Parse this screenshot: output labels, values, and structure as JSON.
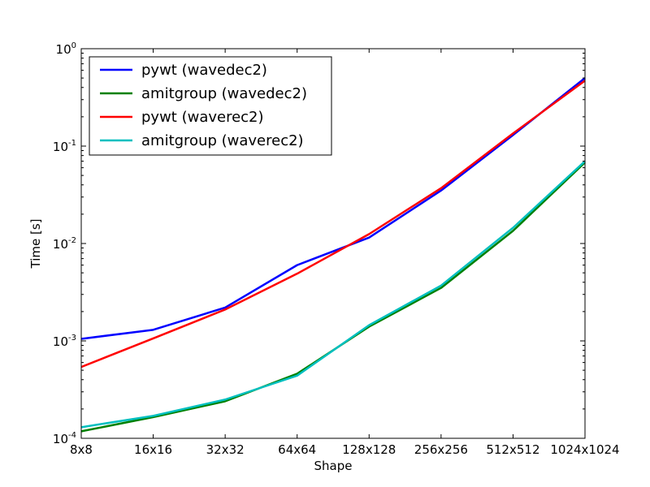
{
  "chart_data": {
    "type": "line",
    "title": "",
    "xlabel": "Shape",
    "ylabel": "Time [s]",
    "yscale": "log",
    "ylim": [
      0.0001,
      1
    ],
    "grid": false,
    "legend_position": "top-left",
    "categories": [
      "8x8",
      "16x16",
      "32x32",
      "64x64",
      "128x128",
      "256x256",
      "512x512",
      "1024x1024"
    ],
    "yticks": [
      {
        "base": "10",
        "exp": "-4",
        "value": 0.0001
      },
      {
        "base": "10",
        "exp": "-3",
        "value": 0.001
      },
      {
        "base": "10",
        "exp": "-2",
        "value": 0.01
      },
      {
        "base": "10",
        "exp": "-1",
        "value": 0.1
      },
      {
        "base": "10",
        "exp": "0",
        "value": 1
      }
    ],
    "series": [
      {
        "name": "pywt (wavedec2)",
        "color": "#0000ff",
        "values": [
          0.00105,
          0.0013,
          0.0022,
          0.006,
          0.0115,
          0.035,
          0.13,
          0.5
        ]
      },
      {
        "name": "amitgroup (wavedec2)",
        "color": "#008000",
        "values": [
          0.000118,
          0.000165,
          0.00024,
          0.00046,
          0.0014,
          0.0035,
          0.0135,
          0.068
        ]
      },
      {
        "name": "pywt (waverec2)",
        "color": "#ff0000",
        "values": [
          0.00054,
          0.00106,
          0.0021,
          0.0049,
          0.0125,
          0.037,
          0.135,
          0.47
        ]
      },
      {
        "name": "amitgroup (waverec2)",
        "color": "#00bfbf",
        "values": [
          0.00013,
          0.00017,
          0.00025,
          0.00044,
          0.00145,
          0.0037,
          0.0145,
          0.07
        ]
      }
    ]
  }
}
